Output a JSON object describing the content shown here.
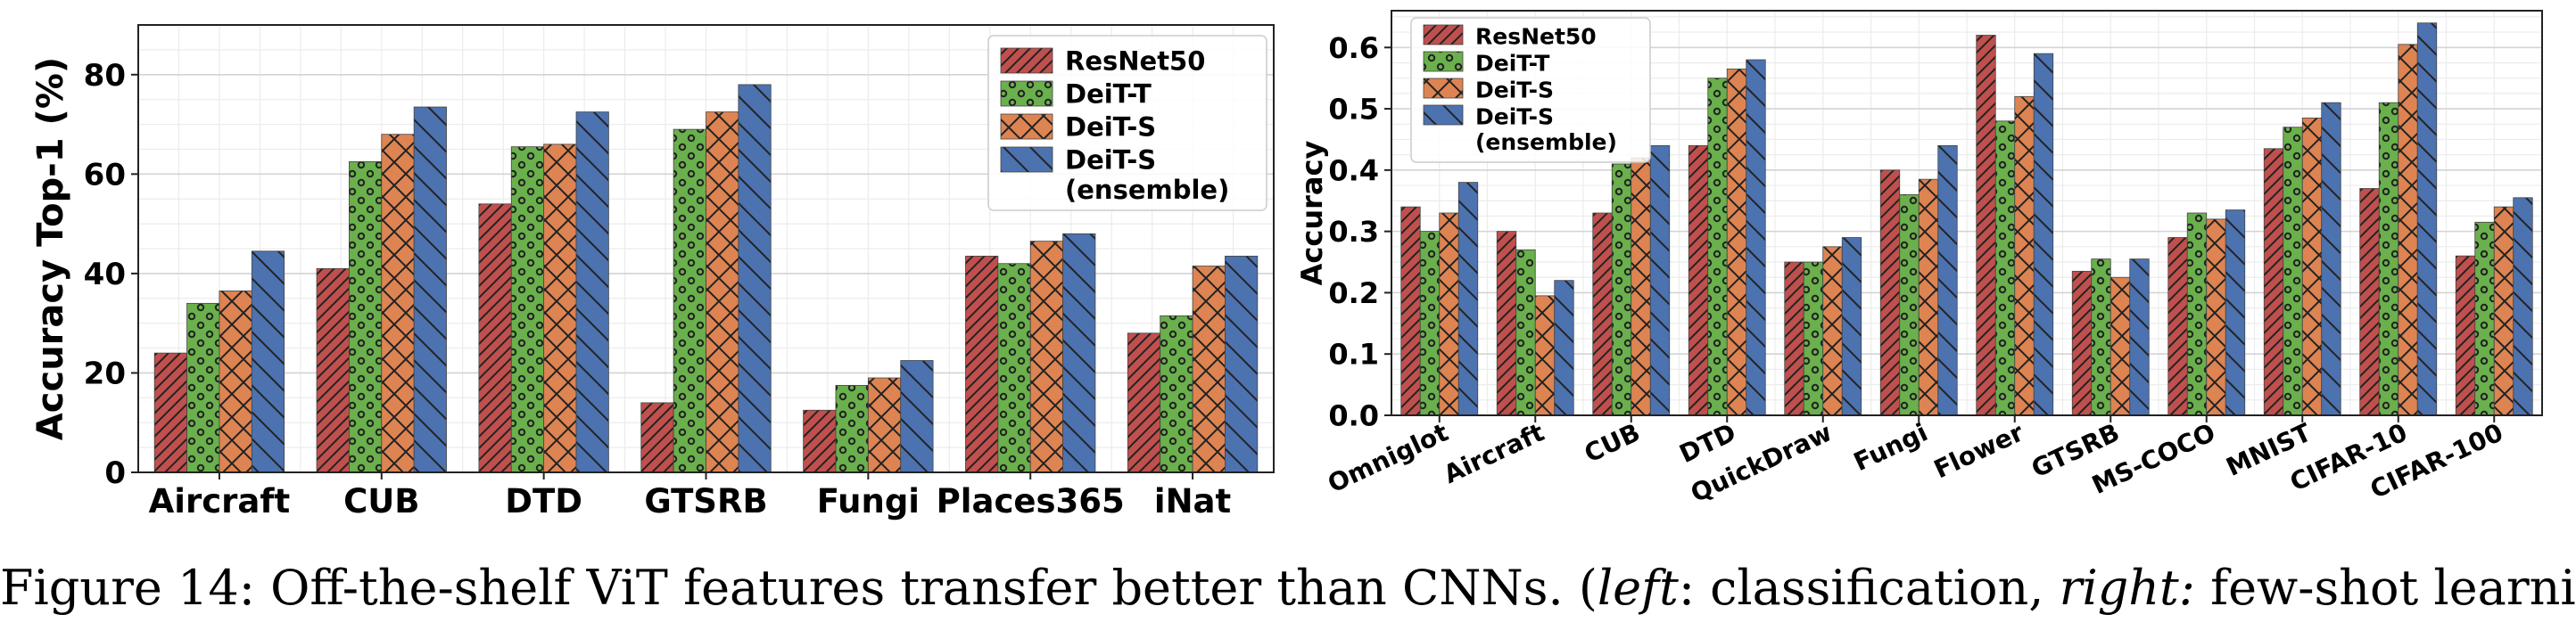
{
  "colors": {
    "series": [
      "#c0504d",
      "#6ab04c",
      "#dd8452",
      "#4c72b0"
    ],
    "grid": "#d8d8d8"
  },
  "patterns": [
    "diag-right",
    "circles",
    "cross",
    "diag-left"
  ],
  "caption": {
    "prefix": "Figure 14: Off-the-shelf ViT features transfer better than CNNs. (",
    "left_word": "left",
    "middle": ": classification, ",
    "right_word": "right:",
    "suffix": " few-shot learning)"
  },
  "chart_data": [
    {
      "type": "bar",
      "title": "",
      "xlabel": "",
      "ylabel": "Accuracy Top-1 (%)",
      "ylim": [
        0,
        90
      ],
      "yticks": [
        0,
        20,
        40,
        60,
        80
      ],
      "ytick_labels": [
        "0",
        "20",
        "40",
        "60",
        "80"
      ],
      "grid": true,
      "legend_position": "top-right",
      "categories": [
        "Aircraft",
        "CUB",
        "DTD",
        "GTSRB",
        "Fungi",
        "Places365",
        "iNat"
      ],
      "series": [
        {
          "name": "ResNet50",
          "values": [
            24,
            41,
            54,
            14,
            12.5,
            43.5,
            28
          ]
        },
        {
          "name": "DeiT-T",
          "values": [
            34,
            62.5,
            65.5,
            69,
            17.5,
            42,
            31.5
          ]
        },
        {
          "name": "DeiT-S",
          "values": [
            36.5,
            68,
            66,
            72.5,
            19,
            46.5,
            41.5
          ]
        },
        {
          "name": "DeiT-S\n(ensemble)",
          "legend_lines": [
            "DeiT-S",
            "(ensemble)"
          ],
          "values": [
            44.5,
            73.5,
            72.5,
            78,
            22.5,
            48,
            43.5
          ]
        }
      ]
    },
    {
      "type": "bar",
      "title": "",
      "xlabel": "",
      "ylabel": "Accuracy",
      "ylim": [
        0,
        0.66
      ],
      "yticks": [
        0,
        0.1,
        0.2,
        0.3,
        0.4,
        0.5,
        0.6
      ],
      "ytick_labels": [
        "0.0",
        "0.1",
        "0.2",
        "0.3",
        "0.4",
        "0.5",
        "0.6"
      ],
      "grid": true,
      "legend_position": "top-left",
      "categories": [
        "Omniglot",
        "Aircraft",
        "CUB",
        "DTD",
        "QuickDraw",
        "Fungi",
        "Flower",
        "GTSRB",
        "MS-COCO",
        "MNIST",
        "CIFAR-10",
        "CIFAR-100"
      ],
      "series": [
        {
          "name": "ResNet50",
          "values": [
            0.34,
            0.3,
            0.33,
            0.44,
            0.25,
            0.4,
            0.62,
            0.235,
            0.29,
            0.435,
            0.37,
            0.26
          ]
        },
        {
          "name": "DeiT-T",
          "values": [
            0.3,
            0.27,
            0.41,
            0.55,
            0.25,
            0.36,
            0.48,
            0.255,
            0.33,
            0.47,
            0.51,
            0.315
          ]
        },
        {
          "name": "DeiT-S",
          "values": [
            0.33,
            0.195,
            0.42,
            0.565,
            0.275,
            0.385,
            0.52,
            0.225,
            0.32,
            0.485,
            0.605,
            0.34
          ]
        },
        {
          "name": "DeiT-S\n(ensemble)",
          "legend_lines": [
            "DeiT-S",
            "(ensemble)"
          ],
          "values": [
            0.38,
            0.22,
            0.44,
            0.58,
            0.29,
            0.44,
            0.59,
            0.255,
            0.335,
            0.51,
            0.64,
            0.355
          ]
        }
      ]
    }
  ]
}
